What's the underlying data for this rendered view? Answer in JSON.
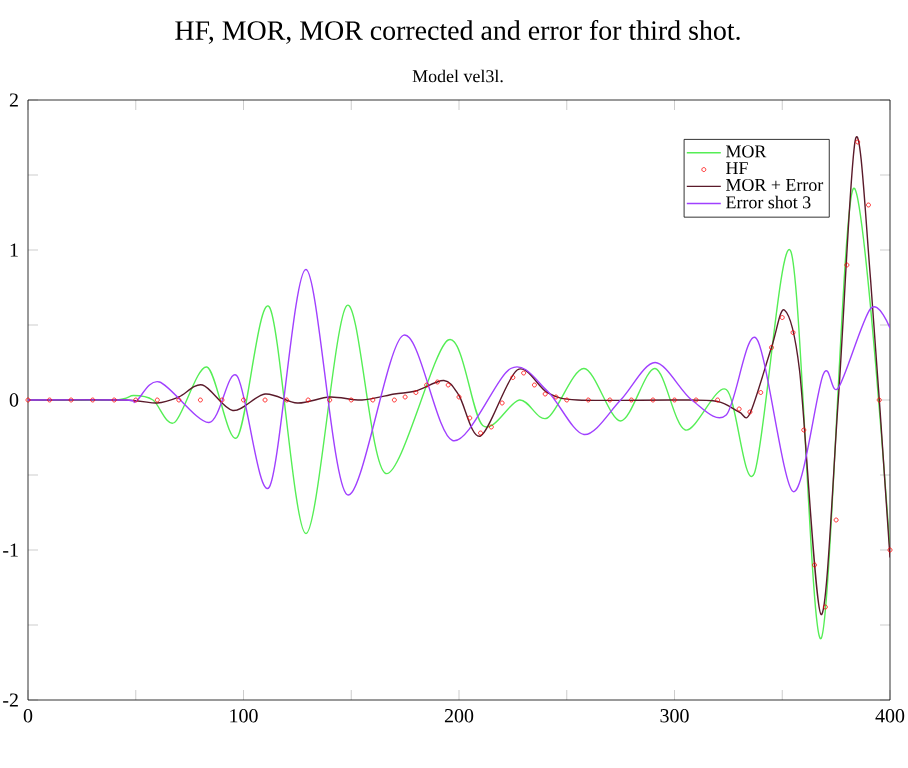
{
  "chart_data": {
    "type": "line",
    "title": "HF, MOR, MOR corrected and error for third shot.",
    "subtitle": "Model vel3l.",
    "xlim": [
      0,
      400
    ],
    "ylim": [
      -2,
      2
    ],
    "xticks": [
      0,
      {
        "value": 50,
        "label": null
      },
      100,
      {
        "value": 150,
        "label": null
      },
      200,
      {
        "value": 250,
        "label": null
      },
      300,
      {
        "value": 350,
        "label": null
      },
      400
    ],
    "yticks": [
      -2,
      {
        "value": -1.5,
        "label": null
      },
      -1,
      {
        "value": -0.5,
        "label": null
      },
      0,
      {
        "value": 0.5,
        "label": null
      },
      1,
      {
        "value": 1.5,
        "label": null
      },
      2
    ],
    "grid": false,
    "legend": "top right",
    "line_style": "solid",
    "series": [
      {
        "name": "MOR",
        "color": "#55ee55",
        "x": [
          0,
          40,
          49,
          58,
          68,
          83,
          97,
          112,
          129,
          148,
          166,
          195,
          211,
          228,
          241,
          258,
          275,
          291,
          305,
          324,
          337,
          354,
          368,
          383,
          400
        ],
        "values": [
          0,
          0,
          0.03,
          0,
          -0.15,
          0.22,
          -0.25,
          0.62,
          -0.89,
          0.63,
          -0.49,
          0.4,
          -0.17,
          0.0,
          -0.12,
          0.21,
          -0.14,
          0.21,
          -0.2,
          0.07,
          -0.49,
          0.99,
          -1.59,
          1.41,
          -1.0
        ]
      },
      {
        "name": "HF",
        "type": "scatter",
        "marker": "circle",
        "color": "#ff0000",
        "x": [
          0,
          10,
          20,
          30,
          40,
          50,
          60,
          70,
          80,
          90,
          100,
          110,
          120,
          130,
          140,
          150,
          160,
          170,
          175,
          180,
          185,
          190,
          195,
          200,
          205,
          210,
          215,
          220,
          225,
          230,
          235,
          240,
          245,
          250,
          260,
          270,
          280,
          290,
          300,
          310,
          320,
          330,
          335,
          340,
          345,
          350,
          355,
          360,
          365,
          370,
          375,
          380,
          385,
          390,
          395,
          400
        ],
        "values": [
          0,
          0,
          0,
          0,
          0,
          0,
          0,
          0,
          0,
          0,
          0,
          0,
          0,
          0,
          0,
          0,
          0,
          0,
          0.02,
          0.05,
          0.1,
          0.12,
          0.1,
          0.02,
          -0.12,
          -0.22,
          -0.18,
          -0.02,
          0.15,
          0.18,
          0.1,
          0.04,
          0.02,
          0,
          0,
          0,
          0,
          0,
          0,
          0,
          0,
          -0.06,
          -0.08,
          0.05,
          0.35,
          0.55,
          0.45,
          -0.2,
          -1.1,
          -1.38,
          -0.8,
          0.9,
          1.72,
          1.3,
          0.0,
          -1.0
        ]
      },
      {
        "name": "MOR + Error",
        "color": "#5a1a2a",
        "x": [
          0,
          45,
          60,
          70,
          81,
          95,
          110,
          125,
          140,
          155,
          170,
          180,
          193,
          200,
          210,
          227,
          241,
          255,
          300,
          320,
          330,
          335,
          345,
          351,
          358,
          368,
          376,
          384,
          391,
          400
        ],
        "values": [
          0,
          0,
          -0.02,
          0.02,
          0.1,
          -0.07,
          0.04,
          -0.02,
          0.02,
          0.0,
          0.04,
          0.06,
          0.13,
          0.03,
          -0.24,
          0.2,
          0.05,
          0.0,
          0.0,
          -0.01,
          -0.08,
          -0.09,
          0.35,
          0.6,
          0.2,
          -1.43,
          0.0,
          1.74,
          0.8,
          -1.05
        ]
      },
      {
        "name": "Error shot 3",
        "color": "#a040ff",
        "x": [
          0,
          45,
          50,
          61,
          84,
          97,
          112,
          129,
          148,
          174,
          197,
          224,
          241,
          258,
          275,
          291,
          308,
          324,
          338,
          355,
          369,
          376,
          391,
          400
        ],
        "values": [
          0,
          0,
          -0.01,
          0.12,
          -0.15,
          0.16,
          -0.58,
          0.87,
          -0.63,
          0.43,
          -0.27,
          0.21,
          0.06,
          -0.23,
          0.0,
          0.25,
          0.0,
          -0.1,
          0.41,
          -0.61,
          0.17,
          0.08,
          0.61,
          0.48
        ]
      }
    ]
  }
}
